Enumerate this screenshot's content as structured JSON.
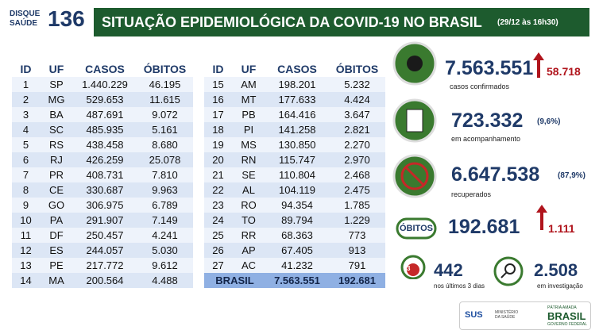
{
  "header": {
    "logo_line1": "DISQUE",
    "logo_line2": "SAÚDE",
    "logo_number": "136",
    "title": "SITUAÇÃO EPIDEMIOLÓGICA DA COVID-19 NO BRASIL",
    "date": "(29/12 às 16h30)"
  },
  "tables": [
    {
      "columns": [
        "ID",
        "UF",
        "CASOS",
        "ÓBITOS"
      ],
      "rows": [
        [
          "1",
          "SP",
          "1.440.229",
          "46.195"
        ],
        [
          "2",
          "MG",
          "529.653",
          "11.615"
        ],
        [
          "3",
          "BA",
          "487.691",
          "9.072"
        ],
        [
          "4",
          "SC",
          "485.935",
          "5.161"
        ],
        [
          "5",
          "RS",
          "438.458",
          "8.680"
        ],
        [
          "6",
          "RJ",
          "426.259",
          "25.078"
        ],
        [
          "7",
          "PR",
          "408.731",
          "7.810"
        ],
        [
          "8",
          "CE",
          "330.687",
          "9.963"
        ],
        [
          "9",
          "GO",
          "306.975",
          "6.789"
        ],
        [
          "10",
          "PA",
          "291.907",
          "7.149"
        ],
        [
          "11",
          "DF",
          "250.457",
          "4.241"
        ],
        [
          "12",
          "ES",
          "244.057",
          "5.030"
        ],
        [
          "13",
          "PE",
          "217.772",
          "9.612"
        ],
        [
          "14",
          "MA",
          "200.564",
          "4.488"
        ]
      ]
    },
    {
      "columns": [
        "ID",
        "UF",
        "CASOS",
        "ÓBITOS"
      ],
      "rows": [
        [
          "15",
          "AM",
          "198.201",
          "5.232"
        ],
        [
          "16",
          "MT",
          "177.633",
          "4.424"
        ],
        [
          "17",
          "PB",
          "164.416",
          "3.647"
        ],
        [
          "18",
          "PI",
          "141.258",
          "2.821"
        ],
        [
          "19",
          "MS",
          "130.850",
          "2.270"
        ],
        [
          "20",
          "RN",
          "115.747",
          "2.970"
        ],
        [
          "21",
          "SE",
          "110.804",
          "2.468"
        ],
        [
          "22",
          "AL",
          "104.119",
          "2.475"
        ],
        [
          "23",
          "RO",
          "94.354",
          "1.785"
        ],
        [
          "24",
          "TO",
          "89.794",
          "1.229"
        ],
        [
          "25",
          "RR",
          "68.363",
          "773"
        ],
        [
          "26",
          "AP",
          "67.405",
          "913"
        ],
        [
          "27",
          "AC",
          "41.232",
          "791"
        ]
      ],
      "total": [
        "BRASIL",
        "7.563.551",
        "192.681"
      ]
    }
  ],
  "stats": {
    "confirmed": {
      "value": "7.563.551",
      "increase": "58.718",
      "label": "casos confirmados"
    },
    "monitoring": {
      "value": "723.332",
      "percent": "(9,6%)",
      "label": "em acompanhamento"
    },
    "recovered": {
      "value": "6.647.538",
      "percent": "(87,9%)",
      "label": "recuperados"
    },
    "deaths": {
      "badge": "ÓBITOS",
      "value": "192.681",
      "increase": "1.111"
    },
    "recent": {
      "icon": "3",
      "value": "442",
      "label": "nos últimos 3 dias"
    },
    "investigation": {
      "value": "2.508",
      "label": "em investigação"
    }
  },
  "footer": {
    "sus": "SUS",
    "ministry": "MINISTÉRIO DA SAÚDE",
    "motto": "PÁTRIA AMADA",
    "country": "BRASIL",
    "gov": "GOVERNO FEDERAL"
  }
}
